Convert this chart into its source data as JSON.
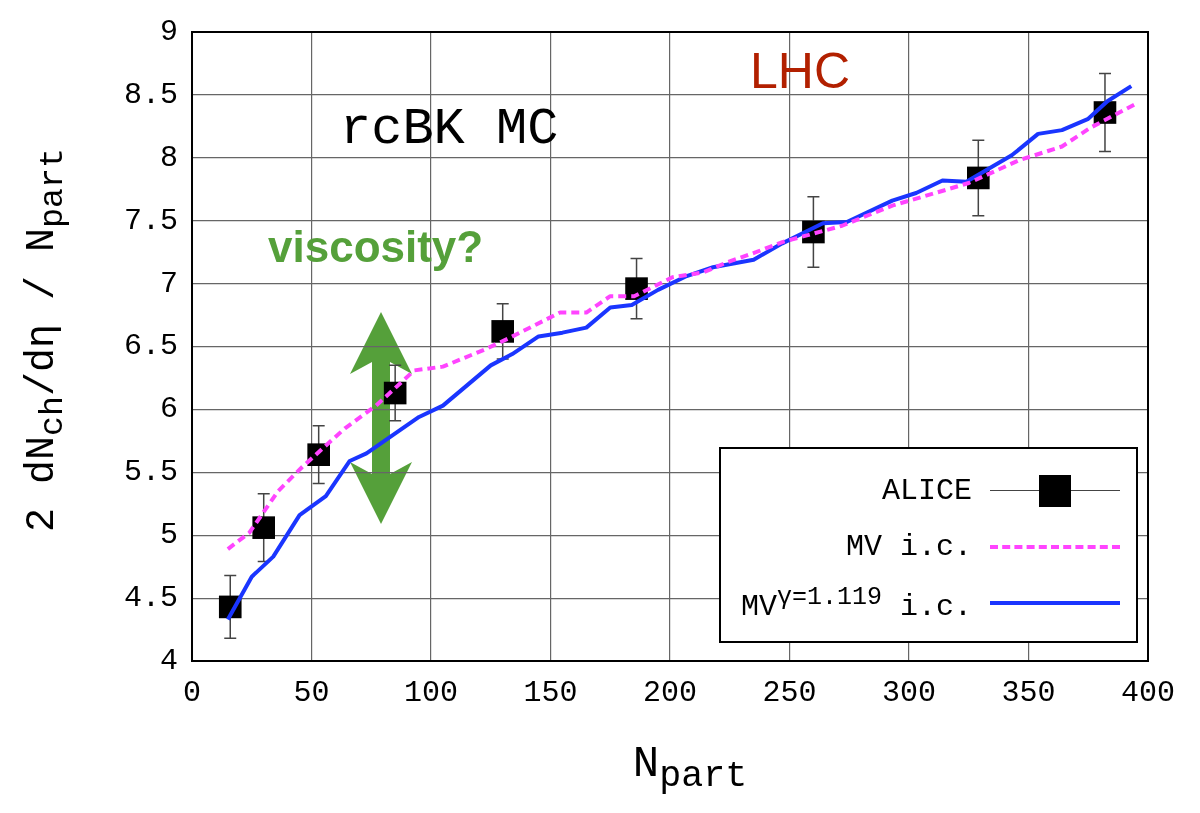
{
  "chart_data": {
    "type": "line",
    "xlabel": "N$_{part}$",
    "ylabel": "2 dN$_{ch}$/dη / N$_{part}$",
    "xlim": [
      0,
      400
    ],
    "xticks": [
      0,
      50,
      100,
      150,
      200,
      250,
      300,
      350,
      400
    ],
    "ylim": [
      4,
      9
    ],
    "yticks": [
      4,
      4.5,
      5,
      5.5,
      6,
      6.5,
      7,
      7.5,
      8,
      8.5,
      9
    ],
    "grid": true,
    "legend": "bottom right",
    "annotations": [
      "rcBK MC",
      "LHC",
      "viscosity?"
    ],
    "series": [
      {
        "name": "ALICE",
        "type": "scatter",
        "marker": "square",
        "color": "#000000",
        "x": [
          16,
          30,
          53,
          85,
          130,
          186,
          260,
          329,
          382
        ],
        "values": [
          4.43,
          5.06,
          5.64,
          6.13,
          6.62,
          6.96,
          7.41,
          7.84,
          8.36
        ],
        "errors": [
          0.25,
          0.27,
          0.23,
          0.22,
          0.22,
          0.24,
          0.28,
          0.3,
          0.31
        ]
      },
      {
        "name": "MV i.c.",
        "type": "line",
        "line_style": "dashed",
        "color": "#ff44ff",
        "x": [
          15,
          24,
          36,
          46,
          64,
          77,
          93,
          105,
          123,
          133,
          154,
          165,
          175,
          185,
          201,
          214,
          224,
          236,
          247,
          272,
          293,
          311,
          325,
          346,
          364,
          376,
          395
        ],
        "values": [
          4.89,
          5.02,
          5.35,
          5.54,
          5.85,
          6.03,
          6.31,
          6.34,
          6.48,
          6.57,
          6.77,
          6.77,
          6.9,
          6.9,
          7.05,
          7.09,
          7.17,
          7.25,
          7.33,
          7.46,
          7.62,
          7.72,
          7.8,
          7.98,
          8.09,
          8.24,
          8.43
        ]
      },
      {
        "name": "MV$^{γ=1.119}$ i.c.",
        "type": "line",
        "line_style": "solid",
        "color": "#1a35ff",
        "x": [
          15,
          25,
          34,
          45,
          56,
          66,
          73,
          95,
          105,
          125,
          134,
          145,
          155,
          165,
          175,
          184,
          195,
          207,
          218,
          235,
          247,
          264,
          274,
          293,
          303,
          314,
          324,
          343,
          354,
          364,
          375,
          383,
          393
        ],
        "values": [
          4.33,
          4.67,
          4.83,
          5.16,
          5.31,
          5.59,
          5.65,
          5.94,
          6.03,
          6.35,
          6.44,
          6.58,
          6.61,
          6.65,
          6.81,
          6.83,
          6.95,
          7.06,
          7.13,
          7.19,
          7.32,
          7.48,
          7.49,
          7.66,
          7.72,
          7.82,
          7.81,
          8.02,
          8.19,
          8.22,
          8.31,
          8.45,
          8.57
        ]
      }
    ]
  }
}
